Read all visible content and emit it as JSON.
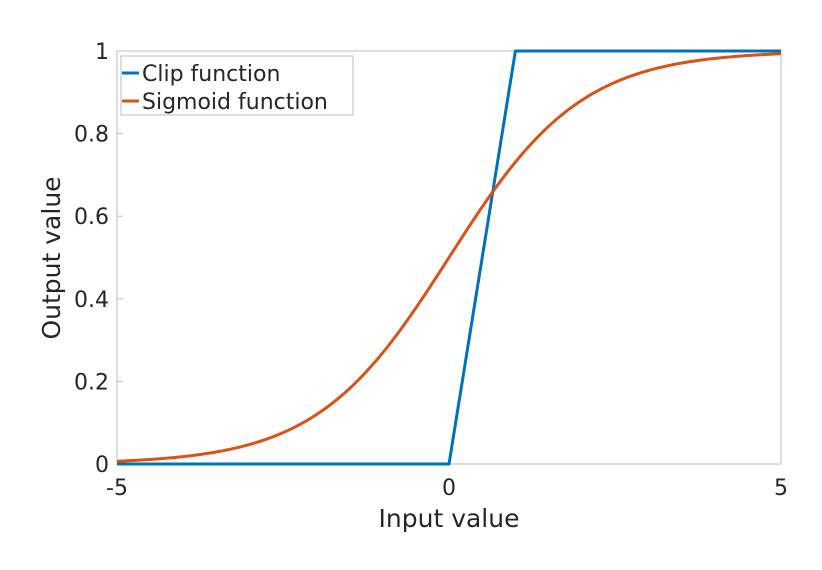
{
  "chart_data": {
    "type": "line",
    "title": "",
    "xlabel": "Input value",
    "ylabel": "Output value",
    "xlim": [
      -5,
      5
    ],
    "ylim": [
      0,
      1
    ],
    "xticks": [
      "-5",
      "0",
      "5"
    ],
    "yticks": [
      "0",
      "0.2",
      "0.4",
      "0.6",
      "0.8",
      "1"
    ],
    "grid": false,
    "legend_position": "top-left",
    "series": [
      {
        "name": "Clip function",
        "color": "#0072BD",
        "x": [
          -5,
          0,
          1,
          5
        ],
        "y": [
          0,
          0,
          1,
          1
        ]
      },
      {
        "name": "Sigmoid function",
        "color": "#D95319",
        "x": [
          -5,
          -4.5,
          -4,
          -3.5,
          -3,
          -2.5,
          -2,
          -1.5,
          -1,
          -0.5,
          0,
          0.5,
          1,
          1.5,
          2,
          2.5,
          3,
          3.5,
          4,
          4.5,
          5
        ],
        "y": [
          0.0067,
          0.011,
          0.018,
          0.029,
          0.047,
          0.076,
          0.119,
          0.182,
          0.269,
          0.378,
          0.5,
          0.622,
          0.731,
          0.818,
          0.881,
          0.924,
          0.953,
          0.971,
          0.982,
          0.989,
          0.9933
        ]
      }
    ]
  }
}
